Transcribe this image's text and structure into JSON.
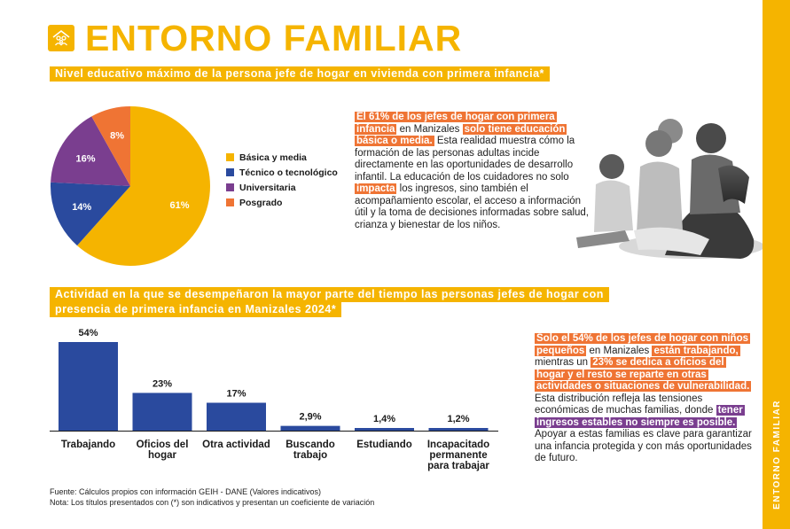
{
  "page": {
    "title": "ENTORNO FAMILIAR",
    "side_label": "ENTORNO FAMILIAR",
    "icon": "family-house-icon"
  },
  "section1": {
    "heading": "Nivel educativo máximo de la persona jefe de hogar en vivienda con primera infancia*",
    "paragraph": [
      {
        "text": "El 61% de los jefes de hogar con primera infancia",
        "style": "orange"
      },
      {
        "text": " en Manizales ",
        "style": "plain"
      },
      {
        "text": "solo tiene educación básica o media.",
        "style": "orange"
      },
      {
        "text": " Esta realidad muestra cómo la formación de las personas adultas incide directamente en las oportunidades de desarrollo infantil. La educación de los cuidadores no solo ",
        "style": "plain"
      },
      {
        "text": "impacta",
        "style": "orange"
      },
      {
        "text": " los ingresos, sino también el acompañamiento escolar, el acceso a información útil y la toma de decisiones informadas sobre salud, crianza y bienestar de los niños.",
        "style": "plain"
      }
    ]
  },
  "section2": {
    "heading_line1": "Actividad en la que se desempeñaron la mayor parte del tiempo las personas jefes de hogar con",
    "heading_line2": "presencia de primera infancia en Manizales 2024*",
    "paragraph": [
      {
        "text": "Solo el 54% de los jefes de hogar con niños pequeños",
        "style": "orange"
      },
      {
        "text": " en Manizales ",
        "style": "plain"
      },
      {
        "text": "están trabajando,",
        "style": "orange"
      },
      {
        "text": " mientras un ",
        "style": "plain"
      },
      {
        "text": "23% se dedica a oficios del hogar y el resto se reparte en otras actividades o situaciones de vulnerabilidad.",
        "style": "orange"
      },
      {
        "text": " Esta distribución refleja las tensiones económicas de muchas familias, donde ",
        "style": "plain"
      },
      {
        "text": "tener ingresos estables no siempre es posible.",
        "style": "purple"
      },
      {
        "text": " Apoyar a estas familias es clave para garantizar una infancia protegida y con más oportunidades de futuro.",
        "style": "plain"
      }
    ]
  },
  "footnotes": {
    "source": "Fuente: Cálculos propios con información GEIH - DANE (Valores indicativos)",
    "note": "Nota: Los títulos presentados con (*) son indicativos y presentan un coeficiente de variación"
  },
  "colors": {
    "yellow": "#f5b400",
    "blue": "#2a4a9e",
    "purple": "#7a3e8f",
    "orange": "#ef7434"
  },
  "chart_data": [
    {
      "type": "pie",
      "title": "Nivel educativo máximo de la persona jefe de hogar en vivienda con primera infancia*",
      "slices": [
        {
          "label": "Básica y media",
          "value": 61,
          "display": "61%",
          "color": "#f5b400"
        },
        {
          "label": "Técnico o tecnológico",
          "value": 14,
          "display": "14%",
          "color": "#2a4a9e"
        },
        {
          "label": "Universitaria",
          "value": 16,
          "display": "16%",
          "color": "#7a3e8f"
        },
        {
          "label": "Posgrado",
          "value": 8,
          "display": "8%",
          "color": "#ef7434"
        }
      ],
      "legend_position": "right"
    },
    {
      "type": "bar",
      "title": "Actividad en la que se desempeñaron la mayor parte del tiempo las personas jefes de hogar con presencia de primera infancia en Manizales 2024*",
      "categories": [
        "Trabajando",
        "Oficios del hogar",
        "Otra actividad",
        "Buscando trabajo",
        "Estudiando",
        "Incapacitado permanente para trabajar"
      ],
      "category_lines": [
        [
          "Trabajando"
        ],
        [
          "Oficios del",
          "hogar"
        ],
        [
          "Otra actividad"
        ],
        [
          "Buscando",
          "trabajo"
        ],
        [
          "Estudiando"
        ],
        [
          "Incapacitado",
          "permanente",
          "para trabajar"
        ]
      ],
      "values": [
        54,
        23,
        17,
        2.9,
        1.4,
        1.2
      ],
      "value_labels": [
        "54%",
        "23%",
        "17%",
        "2,9%",
        "1,4%",
        "1,2%"
      ],
      "ylim": [
        0,
        54
      ],
      "color": "#2a4a9e",
      "grid": false
    }
  ]
}
